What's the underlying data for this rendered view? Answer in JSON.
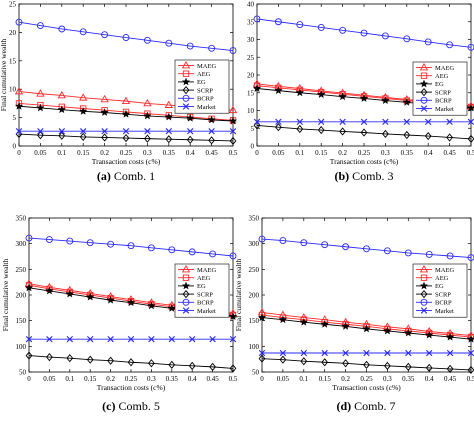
{
  "chart_data": [
    {
      "type": "line",
      "caption_label": "(a)",
      "caption_text": "Comb. 1",
      "xlabel": "Transaction costs (c%)",
      "ylabel": "Final cumulative wealth",
      "xlim": [
        0,
        0.5
      ],
      "ylim": [
        0,
        25
      ],
      "xticks": [
        0,
        0.05,
        0.1,
        0.15,
        0.2,
        0.25,
        0.3,
        0.35,
        0.4,
        0.45,
        0.5
      ],
      "xtick_labels": [
        "0",
        "0.05",
        "0.1",
        "0.15",
        "0.2",
        "0.25",
        "0.3",
        "0.35",
        "0.4",
        "0.45",
        "0.5"
      ],
      "yticks": [
        0,
        5,
        10,
        15,
        20,
        25
      ],
      "ytick_labels": [
        "0",
        "5",
        "10",
        "15",
        "20",
        "25"
      ],
      "grid": false,
      "legend_placement": "right",
      "x": [
        0,
        0.05,
        0.1,
        0.15,
        0.2,
        0.25,
        0.3,
        0.35,
        0.4,
        0.45,
        0.5
      ],
      "series": [
        {
          "name": "MAEG",
          "values": [
            9.6,
            9.2,
            8.9,
            8.5,
            8.2,
            7.9,
            7.5,
            7.2,
            6.9,
            6.6,
            6.3
          ]
        },
        {
          "name": "AEG",
          "values": [
            7.5,
            7.2,
            6.9,
            6.6,
            6.3,
            6.0,
            5.7,
            5.4,
            5.1,
            4.8,
            4.5
          ]
        },
        {
          "name": "EG",
          "values": [
            7.0,
            6.7,
            6.4,
            6.1,
            5.9,
            5.6,
            5.3,
            5.1,
            4.9,
            4.6,
            4.4
          ]
        },
        {
          "name": "SCRP",
          "values": [
            2.1,
            1.9,
            1.8,
            1.6,
            1.5,
            1.4,
            1.3,
            1.2,
            1.1,
            1.0,
            0.9
          ]
        },
        {
          "name": "BCRP",
          "values": [
            21.8,
            21.2,
            20.6,
            20.1,
            19.6,
            19.1,
            18.6,
            18.1,
            17.6,
            17.2,
            16.8
          ]
        },
        {
          "name": "Market",
          "values": [
            2.6,
            2.6,
            2.6,
            2.6,
            2.6,
            2.6,
            2.6,
            2.6,
            2.6,
            2.6,
            2.6
          ]
        }
      ]
    },
    {
      "type": "line",
      "caption_label": "(b)",
      "caption_text": "Comb. 3",
      "xlabel": "Transaction costs (c%)",
      "ylabel": "",
      "xlim": [
        0,
        0.5
      ],
      "ylim": [
        0,
        40
      ],
      "xticks": [
        0,
        0.05,
        0.1,
        0.15,
        0.2,
        0.25,
        0.3,
        0.35,
        0.4,
        0.45,
        0.5
      ],
      "xtick_labels": [
        "0",
        "0.05",
        "0.1",
        "0.15",
        "0.2",
        "0.25",
        "0.3",
        "0.35",
        "0.4",
        "0.45",
        "0.5"
      ],
      "yticks": [
        0,
        5,
        10,
        15,
        20,
        25,
        30,
        35,
        40
      ],
      "ytick_labels": [
        "0",
        "5",
        "10",
        "15",
        "20",
        "25",
        "30",
        "35",
        "40"
      ],
      "grid": false,
      "legend_placement": "right",
      "x": [
        0,
        0.05,
        0.1,
        0.15,
        0.2,
        0.25,
        0.3,
        0.35,
        0.4,
        0.45,
        0.5
      ],
      "series": [
        {
          "name": "MAEG",
          "values": [
            17.5,
            16.8,
            16.2,
            15.5,
            14.9,
            14.3,
            13.7,
            13.1,
            12.5,
            11.9,
            11.3
          ]
        },
        {
          "name": "AEG",
          "values": [
            17.0,
            16.4,
            15.8,
            15.2,
            14.6,
            14.0,
            13.4,
            12.8,
            12.2,
            11.6,
            11.0
          ]
        },
        {
          "name": "EG",
          "values": [
            16.2,
            15.6,
            15.0,
            14.5,
            13.9,
            13.4,
            12.8,
            12.3,
            11.7,
            11.2,
            10.7
          ]
        },
        {
          "name": "SCRP",
          "values": [
            5.8,
            5.3,
            4.8,
            4.5,
            4.1,
            3.8,
            3.4,
            3.1,
            2.8,
            2.4,
            2.0
          ]
        },
        {
          "name": "BCRP",
          "values": [
            35.8,
            35.0,
            34.2,
            33.4,
            32.6,
            31.8,
            31.0,
            30.2,
            29.3,
            28.5,
            27.8
          ]
        },
        {
          "name": "Market",
          "values": [
            6.8,
            6.8,
            6.8,
            6.8,
            6.8,
            6.8,
            6.8,
            6.8,
            6.8,
            6.8,
            6.8
          ]
        }
      ]
    },
    {
      "type": "line",
      "caption_label": "(c)",
      "caption_text": "Comb. 5",
      "xlabel": "Transaction costs (c%)",
      "ylabel": "Final cumulative wealth",
      "xlim": [
        0,
        0.5
      ],
      "ylim": [
        50,
        350
      ],
      "xticks": [
        0,
        0.05,
        0.1,
        0.15,
        0.2,
        0.25,
        0.3,
        0.35,
        0.4,
        0.45,
        0.5
      ],
      "xtick_labels": [
        "0",
        "0.05",
        "0.1",
        "0.15",
        "0.2",
        "0.25",
        "0.3",
        "0.35",
        "0.4",
        "0.45",
        "0.5"
      ],
      "yticks": [
        50,
        100,
        150,
        200,
        250,
        300,
        350
      ],
      "ytick_labels": [
        "50",
        "100",
        "150",
        "200",
        "250",
        "300",
        "350"
      ],
      "grid": false,
      "legend_placement": "right",
      "x": [
        0,
        0.05,
        0.1,
        0.15,
        0.2,
        0.25,
        0.3,
        0.35,
        0.4,
        0.45,
        0.5
      ],
      "series": [
        {
          "name": "MAEG",
          "values": [
            222,
            215,
            209,
            203,
            197,
            191,
            185,
            180,
            175,
            169,
            164
          ]
        },
        {
          "name": "AEG",
          "values": [
            219,
            212,
            206,
            200,
            194,
            188,
            182,
            177,
            172,
            166,
            161
          ]
        },
        {
          "name": "EG",
          "values": [
            214,
            208,
            202,
            196,
            190,
            185,
            179,
            174,
            169,
            163,
            158
          ]
        },
        {
          "name": "SCRP",
          "values": [
            82,
            79,
            77,
            74,
            72,
            69,
            67,
            64,
            62,
            60,
            57
          ]
        },
        {
          "name": "BCRP",
          "values": [
            311,
            308,
            305,
            302,
            299,
            296,
            292,
            288,
            284,
            280,
            276
          ]
        },
        {
          "name": "Market",
          "values": [
            114,
            114,
            114,
            114,
            114,
            114,
            114,
            114,
            114,
            114,
            114
          ]
        }
      ]
    },
    {
      "type": "line",
      "caption_label": "(d)",
      "caption_text": "Comb. 7",
      "xlabel": "Transaction costs (c%)",
      "ylabel": "Final cumulative wealth",
      "xlim": [
        0,
        0.5
      ],
      "ylim": [
        50,
        350
      ],
      "xticks": [
        0,
        0.05,
        0.1,
        0.15,
        0.2,
        0.25,
        0.3,
        0.35,
        0.4,
        0.45,
        0.5
      ],
      "xtick_labels": [
        "0",
        "0.05",
        "0.1",
        "0.15",
        "0.2",
        "0.25",
        "0.3",
        "0.35",
        "0.4",
        "0.45",
        "0.5"
      ],
      "yticks": [
        50,
        100,
        150,
        200,
        250,
        300,
        350
      ],
      "ytick_labels": [
        "50",
        "100",
        "150",
        "200",
        "250",
        "300",
        "350"
      ],
      "grid": false,
      "legend_placement": "right",
      "x": [
        0,
        0.05,
        0.1,
        0.15,
        0.2,
        0.25,
        0.3,
        0.35,
        0.4,
        0.45,
        0.5
      ],
      "series": [
        {
          "name": "MAEG",
          "values": [
            166,
            161,
            156,
            152,
            147,
            143,
            138,
            134,
            129,
            125,
            121
          ]
        },
        {
          "name": "AEG",
          "values": [
            161,
            156,
            152,
            147,
            143,
            139,
            134,
            130,
            126,
            122,
            118
          ]
        },
        {
          "name": "EG",
          "values": [
            156,
            152,
            147,
            143,
            139,
            134,
            130,
            126,
            122,
            118,
            114
          ]
        },
        {
          "name": "SCRP",
          "values": [
            76,
            74,
            71,
            69,
            67,
            64,
            62,
            60,
            58,
            56,
            54
          ]
        },
        {
          "name": "BCRP",
          "values": [
            309,
            306,
            302,
            298,
            294,
            290,
            286,
            282,
            279,
            276,
            273
          ]
        },
        {
          "name": "Market",
          "values": [
            87,
            87,
            87,
            87,
            87,
            87,
            87,
            87,
            87,
            87,
            87
          ]
        }
      ]
    }
  ],
  "series_styles": [
    {
      "name": "MAEG",
      "color": "#ff2a2a",
      "marker": "triangle"
    },
    {
      "name": "AEG",
      "color": "#ff2a2a",
      "marker": "square"
    },
    {
      "name": "EG",
      "color": "#000000",
      "marker": "star"
    },
    {
      "name": "SCRP",
      "color": "#000000",
      "marker": "diamond"
    },
    {
      "name": "BCRP",
      "color": "#2a2aff",
      "marker": "circle"
    },
    {
      "name": "Market",
      "color": "#2a2aff",
      "marker": "x"
    }
  ]
}
